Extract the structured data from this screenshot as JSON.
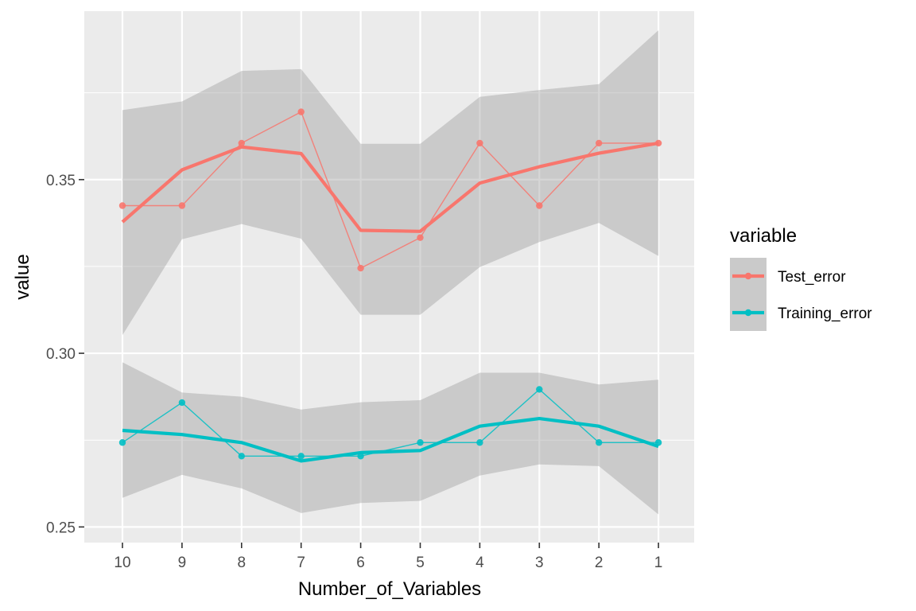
{
  "chart_data": {
    "type": "line",
    "title": "",
    "xlabel": "Number_of_Variables",
    "ylabel": "value",
    "x_reversed": true,
    "categories": [
      "10",
      "9",
      "8",
      "7",
      "6",
      "5",
      "4",
      "3",
      "2",
      "1"
    ],
    "yticks": [
      0.25,
      0.3,
      0.35
    ],
    "ytick_labels": [
      "0.25",
      "0.30",
      "0.35"
    ],
    "ylim": [
      0.2455,
      0.3985
    ],
    "grid": true,
    "legend": {
      "title": "variable",
      "placement": "right",
      "entries": [
        "Test_error",
        "Training_error"
      ]
    },
    "series": [
      {
        "name": "Test_error",
        "color": "#F8766D",
        "values": [
          0.3425,
          0.3425,
          0.3605,
          0.3695,
          0.3245,
          0.3333,
          0.3605,
          0.3425,
          0.3605,
          0.3605
        ],
        "smooth": [
          0.3378,
          0.3528,
          0.3594,
          0.3575,
          0.3354,
          0.3351,
          0.349,
          0.3537,
          0.3576,
          0.3605
        ],
        "band_lower": [
          0.3052,
          0.3328,
          0.3372,
          0.333,
          0.3111,
          0.3111,
          0.3248,
          0.332,
          0.3375,
          0.328
        ],
        "band_upper": [
          0.37,
          0.3725,
          0.3813,
          0.3818,
          0.3603,
          0.3603,
          0.3738,
          0.3758,
          0.3775,
          0.393
        ]
      },
      {
        "name": "Training_error",
        "color": "#00BFC4",
        "values": [
          0.2743,
          0.2858,
          0.2704,
          0.2704,
          0.2704,
          0.2743,
          0.2743,
          0.2896,
          0.2743,
          0.2743
        ],
        "smooth": [
          0.2778,
          0.2766,
          0.2743,
          0.269,
          0.2714,
          0.272,
          0.279,
          0.2812,
          0.279,
          0.2732
        ],
        "band_lower": [
          0.2584,
          0.265,
          0.2611,
          0.254,
          0.2569,
          0.2575,
          0.2648,
          0.268,
          0.2675,
          0.2536
        ],
        "band_upper": [
          0.2974,
          0.2887,
          0.2875,
          0.2838,
          0.2859,
          0.2865,
          0.2944,
          0.2944,
          0.291,
          0.2924
        ]
      }
    ]
  }
}
